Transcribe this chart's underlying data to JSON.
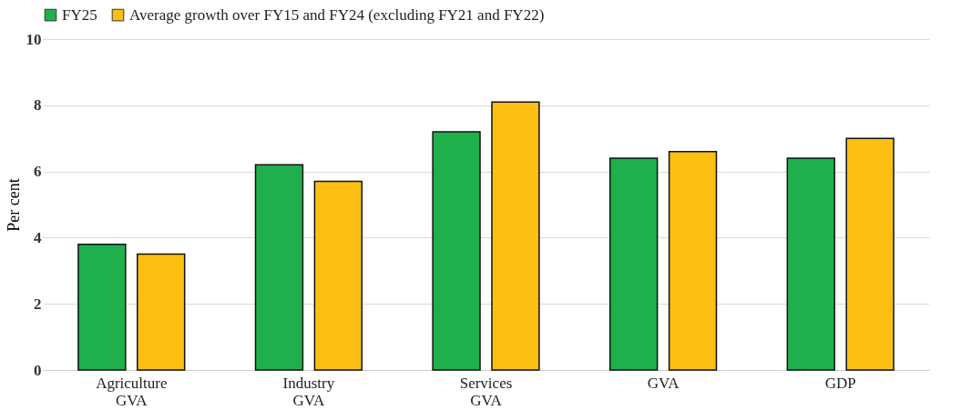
{
  "chart_data": {
    "type": "bar",
    "ylabel": "Per cent",
    "categories": [
      "Agriculture GVA",
      "Industry GVA",
      "Services GVA",
      "GVA",
      "GDP"
    ],
    "series": [
      {
        "name": "FY25",
        "color": "#1fb04d",
        "values": [
          3.8,
          6.2,
          7.2,
          6.4,
          6.4
        ]
      },
      {
        "name": "Average growth over FY15 and FY24 (excluding FY21 and FY22)",
        "color": "#fdbf12",
        "values": [
          3.5,
          5.7,
          8.1,
          6.6,
          7.0
        ]
      }
    ],
    "ylim": [
      0,
      10
    ],
    "yticks": [
      0,
      2,
      4,
      6,
      8,
      10
    ],
    "grid": "y",
    "legend": "top"
  }
}
